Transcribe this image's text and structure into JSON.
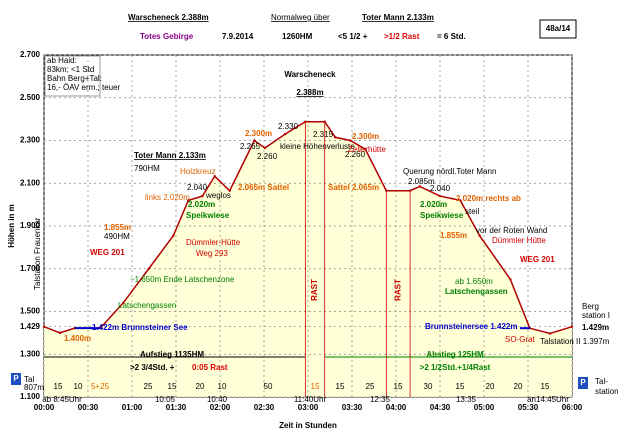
{
  "chart_data": {
    "type": "area",
    "title_parts": [
      "Warscheneck 2.388m",
      "Normalweg über",
      "Toter Mann 2.133m"
    ],
    "subtitle_parts": [
      "Totes Gebirge",
      "7.9.2014",
      "1260HM",
      "<5 1/2 +",
      ">1/2 Rast",
      "= 6 Std."
    ],
    "badge": "48a/14",
    "y_label": "Höhen in m",
    "x_label": "Zeit in Stunden",
    "note": [
      "ab Haid:",
      "83km; <1 Std",
      "Bahn Berg+Tal:",
      "16,- ÖAV erm.; teuer"
    ],
    "peak_labels": [
      "Warscheneck",
      "2.388m",
      "Toter Mann 2.133m",
      "790HM"
    ],
    "x": [
      0,
      0.18,
      0.35,
      0.64,
      0.9,
      1.19,
      1.47,
      1.64,
      1.8,
      1.94,
      2.11,
      2.39,
      2.51,
      2.74,
      2.97,
      3.19,
      3.31,
      3.48,
      3.65,
      3.89,
      4.16,
      4.27,
      4.5,
      4.73,
      4.95,
      5.3,
      5.52,
      5.75,
      6.0
    ],
    "series": [
      {
        "name": "Profil",
        "color": "#b00000",
        "fill": "#ffffd8",
        "values": [
          1429,
          1400,
          1422,
          1422,
          1540,
          1700,
          1855,
          2020,
          2040,
          2133,
          2065,
          2300,
          2265,
          2330,
          2388,
          2388,
          2315,
          2300,
          2260,
          2065,
          2065,
          2085,
          2040,
          2020,
          1855,
          1650,
          1422,
          1397,
          1429
        ]
      }
    ],
    "xlim": [
      0,
      6
    ],
    "ylim": [
      1100,
      2700
    ],
    "xticks": [
      {
        "value": 0,
        "label": "00:00"
      },
      {
        "value": 0.5,
        "label": "00:30"
      },
      {
        "value": 1,
        "label": "01:00"
      },
      {
        "value": 1.5,
        "label": "01:30"
      },
      {
        "value": 2,
        "label": "02:00"
      },
      {
        "value": 2.5,
        "label": "02:30"
      },
      {
        "value": 3,
        "label": "03:00"
      },
      {
        "value": 3.5,
        "label": "03:30"
      },
      {
        "value": 4,
        "label": "04:00"
      },
      {
        "value": 4.5,
        "label": "04:30"
      },
      {
        "value": 5,
        "label": "05:00"
      },
      {
        "value": 5.5,
        "label": "05:30"
      },
      {
        "value": 6,
        "label": "06:00"
      }
    ],
    "yticks": [
      {
        "value": 1100,
        "label": "1.100"
      },
      {
        "value": 1300,
        "label": "1.300"
      },
      {
        "value": 1429,
        "label": "1.429"
      },
      {
        "value": 1500,
        "label": "1.500"
      },
      {
        "value": 1700,
        "label": "1.700"
      },
      {
        "value": 1900,
        "label": "1.900"
      },
      {
        "value": 2100,
        "label": "2.100"
      },
      {
        "value": 2300,
        "label": "2.300"
      },
      {
        "value": 2500,
        "label": "2.500"
      },
      {
        "value": 2700,
        "label": "2.700"
      }
    ],
    "grid": true,
    "rast_label": "RAST",
    "annotations": [
      "2.330",
      "2.300m",
      "2.300m",
      "2.315",
      "2.265",
      "2.260",
      "2.260",
      "kleine Höhenverluste",
      "Zellerhütte",
      "Holzkreuz",
      "2.040",
      "weglos",
      "links 2.020m",
      "2.020m",
      "Speikwiese",
      "2.065m Sattel",
      "Sattel 2.065m",
      "Querung nördl.Toter Mann",
      "2.085m",
      "2.040",
      "2.020m",
      "Speikwiese",
      "2.020m rechts ab",
      "steil",
      "vor der Roten Wand",
      "Dümmler Hütte",
      "1.855m",
      "1.855m",
      "490HM",
      "Dümmler-Hütte",
      "Weg 293",
      "WEG 201",
      "WEG 201",
      "~1.650m Ende Latschenzone",
      "ab 1.650m",
      "Latschengassen",
      "Latschengassen",
      "1.422m Brunnsteiner See",
      "Brunnsteinersee 1.422m",
      "1.400m",
      "SO-Grat",
      "Talstation II 1.397m",
      "Talstation Frauenkar"
    ],
    "durations": [
      "15",
      "10",
      "5+25",
      "25",
      "15",
      "20",
      "10",
      "50",
      "15",
      "15",
      "25",
      "15",
      "30",
      "15",
      "20",
      "20",
      "15"
    ],
    "ascent": [
      "Aufstieg 1135HM",
      ">2 3/4Std. +",
      "0:05 Rast"
    ],
    "descent": [
      "Abstieg  125HM",
      ">2 1/2Std.+1/4Rast"
    ],
    "clock_times": [
      "ab 8:45Uhr",
      "10:05",
      "10:40",
      "11:40Uhr",
      "12:35",
      "13:35",
      "an14:45Uhr"
    ],
    "left_station": [
      "P",
      "Tal",
      "807m"
    ],
    "right_station": [
      "P",
      "Tal-",
      "station"
    ],
    "top_station": [
      "Berg",
      "station I",
      "1.429m"
    ]
  }
}
